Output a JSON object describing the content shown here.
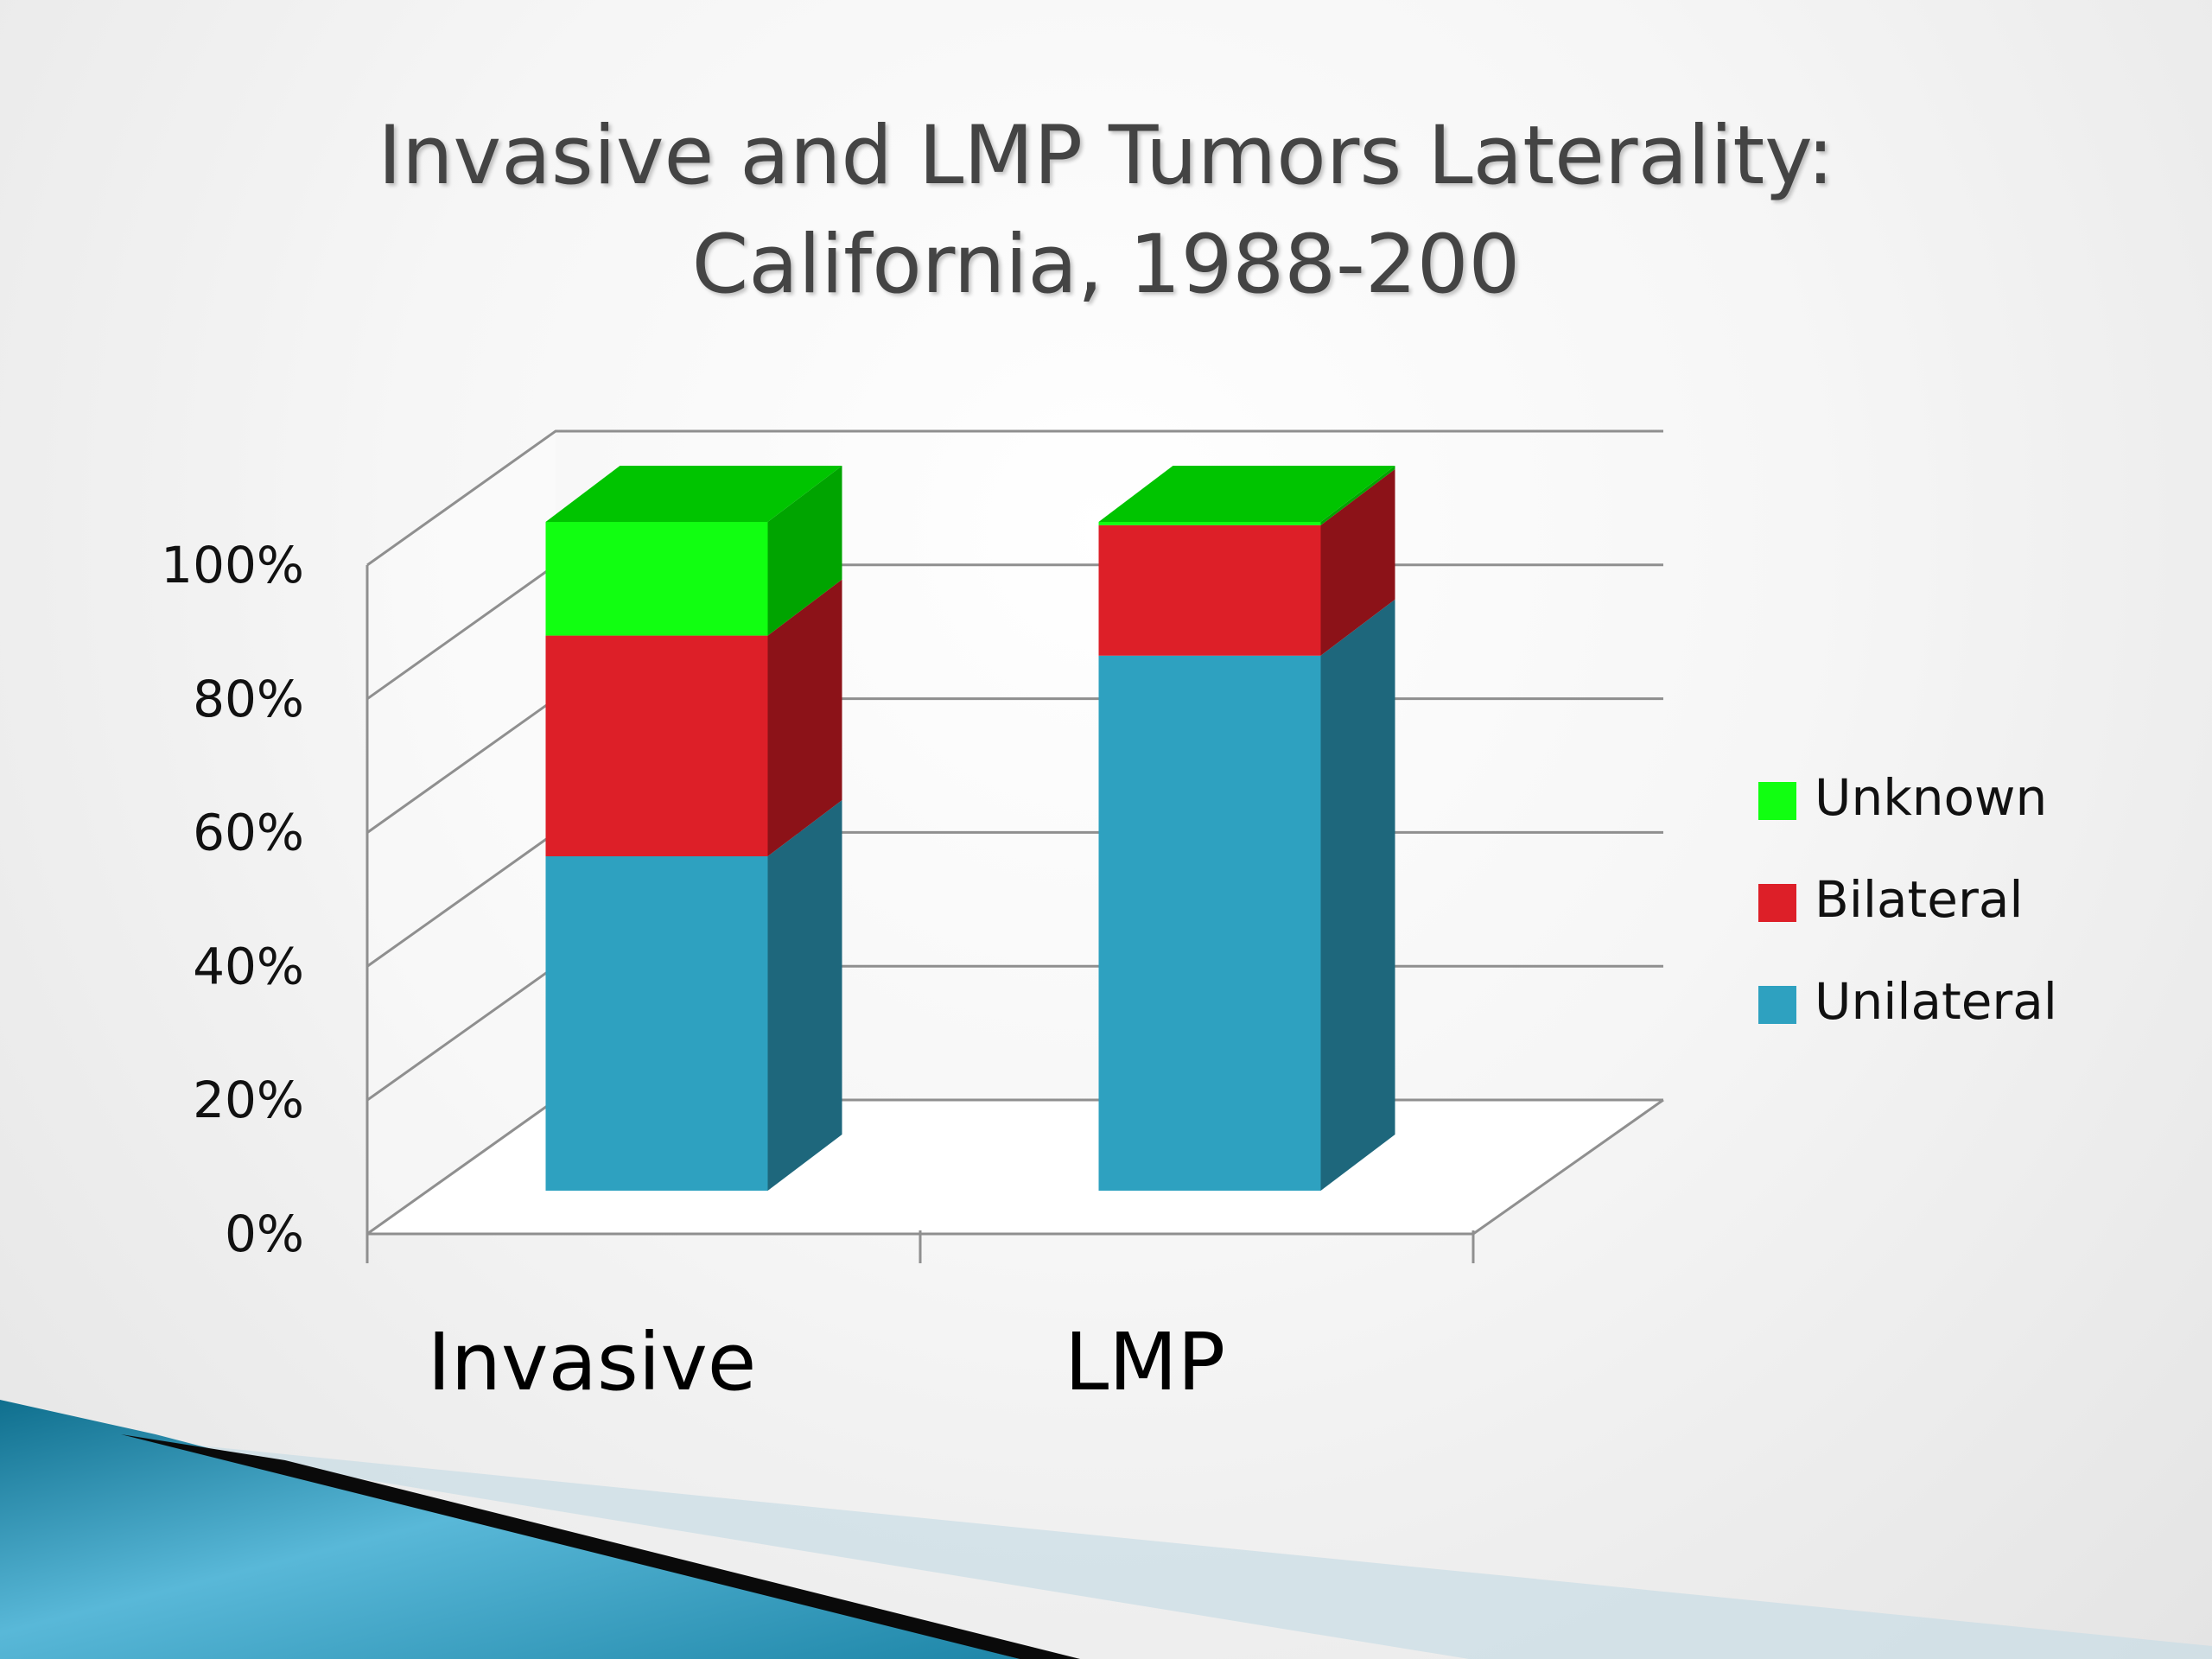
{
  "slide": {
    "title_line1": "Invasive and LMP Tumors Laterality:",
    "title_line2": "California, 1988-200"
  },
  "chart_data": {
    "type": "bar",
    "stacked": true,
    "three_d": true,
    "categories": [
      "Invasive",
      "LMP"
    ],
    "series": [
      {
        "name": "Unilateral",
        "values": [
          50,
          80
        ],
        "color": "#2ea1c0",
        "side_color": "#1e677c"
      },
      {
        "name": "Bilateral",
        "values": [
          33,
          19.5
        ],
        "color": "#dd1f28",
        "side_color": "#8c1218"
      },
      {
        "name": "Unknown",
        "values": [
          17,
          0.5
        ],
        "color": "#11ff11",
        "side_color": "#00a400",
        "top_color": "#00c400"
      }
    ],
    "y_ticks": [
      "0%",
      "20%",
      "40%",
      "60%",
      "80%",
      "100%"
    ],
    "ylim": [
      0,
      100
    ],
    "grid": true,
    "legend_position": "right"
  }
}
